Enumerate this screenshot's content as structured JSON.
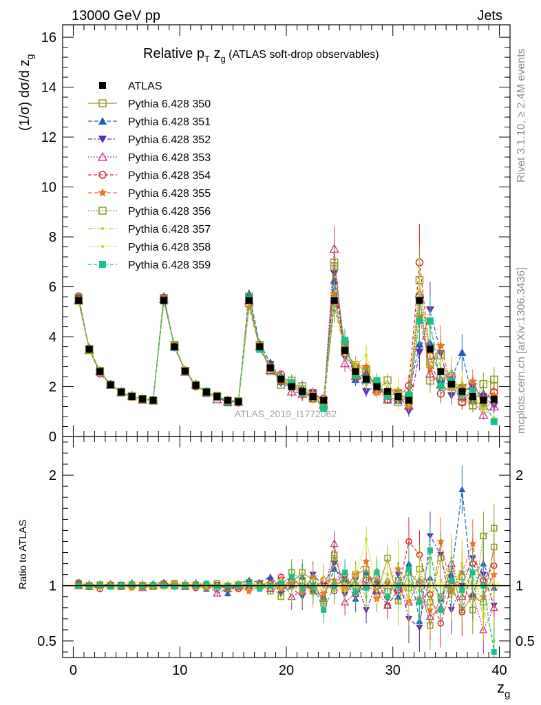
{
  "header": {
    "left": "13000 GeV pp",
    "right": "Jets"
  },
  "side": {
    "rivet": "Rivet 3.1.10, ≥ 2.4M events",
    "mcplots": "mcplots.cern.ch [arXiv:1306.3436]"
  },
  "main": {
    "title_prefix": "Relative p",
    "title_sub_t": "T",
    "title_mid": " z",
    "title_sub_g": "g",
    "title_suffix": " (ATLAS soft-drop observables)",
    "ylabel_prefix": "(1/σ) dσ/d z",
    "ylabel_sub": "g",
    "watermark": "ATLAS_2019_I1772062"
  },
  "ratio": {
    "ylabel": "Ratio to ATLAS"
  },
  "xaxis": {
    "label": "z",
    "label_sub": "g"
  },
  "chart_data": [
    {
      "type": "line",
      "panel": "main",
      "title": "Relative pT zg (ATLAS soft-drop observables)",
      "xlabel": "zg",
      "ylabel": "(1/σ) dσ/d zg",
      "xlim": [
        -1,
        41
      ],
      "ylim": [
        0,
        16.5
      ],
      "xticks": [
        0,
        10,
        20,
        30,
        40
      ],
      "yticks": [
        0,
        2,
        4,
        6,
        8,
        10,
        12,
        14,
        16
      ],
      "legend_position": "top-left",
      "x": [
        0.5,
        1.5,
        2.5,
        3.5,
        4.5,
        5.5,
        6.5,
        7.5,
        8.5,
        9.5,
        10.5,
        11.5,
        12.5,
        13.5,
        14.5,
        15.5,
        16.5,
        17.5,
        18.5,
        19.5,
        20.5,
        21.5,
        22.5,
        23.5,
        24.5,
        25.5,
        26.5,
        27.5,
        28.5,
        29.5,
        30.5,
        31.5,
        32.5,
        33.5,
        34.5,
        35.5,
        36.5,
        37.5,
        38.5,
        39.5
      ],
      "reference": {
        "name": "ATLAS",
        "color": "#000000",
        "values": [
          5.45,
          3.5,
          2.6,
          2.07,
          1.78,
          1.6,
          1.5,
          1.45,
          5.45,
          3.6,
          2.62,
          2.05,
          1.78,
          1.6,
          1.45,
          1.4,
          5.45,
          3.6,
          2.75,
          2.3,
          2.0,
          1.8,
          1.6,
          1.45,
          5.45,
          3.45,
          2.6,
          2.3,
          2.0,
          1.8,
          1.6,
          1.45,
          5.45,
          3.5,
          2.6,
          2.1,
          1.8,
          1.6,
          1.45,
          1.5
        ]
      },
      "series": [
        {
          "name": "Pythia 6.428 350",
          "color": "#9a9a2e",
          "marker": "square-open",
          "dash": ""
        },
        {
          "name": "Pythia 6.428 351",
          "color": "#1f5fbf",
          "marker": "triangle-up",
          "dash": "6,3"
        },
        {
          "name": "Pythia 6.428 352",
          "color": "#5a2fb0",
          "marker": "triangle-down",
          "dash": "6,3,2,3"
        },
        {
          "name": "Pythia 6.428 353",
          "color": "#c0308a",
          "marker": "triangle-open",
          "dash": "2,2"
        },
        {
          "name": "Pythia 6.428 354",
          "color": "#e0202a",
          "marker": "circle-open",
          "dash": "5,3"
        },
        {
          "name": "Pythia 6.428 355",
          "color": "#f07020",
          "marker": "star",
          "dash": "6,3"
        },
        {
          "name": "Pythia 6.428 356",
          "color": "#8a9a18",
          "marker": "square-open",
          "dash": "2,2"
        },
        {
          "name": "Pythia 6.428 357",
          "color": "#d8c218",
          "marker": "dot",
          "dash": "7,3,2,3"
        },
        {
          "name": "Pythia 6.428 358",
          "color": "#c8d818",
          "marker": "dot",
          "dash": "2,2"
        },
        {
          "name": "Pythia 6.428 359",
          "color": "#18c08a",
          "marker": "square",
          "dash": "5,3"
        }
      ],
      "ratios": [
        [
          1.0,
          1.0,
          1.01,
          1.0,
          1.0,
          1.0,
          1.0,
          0.99,
          1.0,
          1.01,
          1.0,
          1.0,
          1.0,
          0.98,
          0.99,
          1.01,
          0.98,
          1.02,
          0.95,
          1.0,
          1.03,
          1.12,
          1.05,
          0.84,
          1.28,
          0.98,
          1.1,
          1.15,
          0.92,
          1.25,
          0.86,
          1.12,
          1.02,
          0.64,
          0.9,
          1.15,
          0.78,
          0.9,
          0.85,
          1.35
        ],
        [
          1.01,
          1.01,
          1.0,
          1.02,
          0.99,
          1.01,
          1.0,
          1.02,
          1.03,
          1.0,
          1.0,
          1.01,
          0.97,
          1.0,
          0.93,
          1.02,
          1.05,
          1.03,
          1.08,
          0.96,
          1.0,
          1.08,
          0.95,
          0.9,
          1.15,
          1.06,
          0.88,
          1.12,
          0.95,
          1.05,
          0.9,
          1.2,
          0.68,
          1.07,
          0.88,
          1.1,
          1.87,
          0.92,
          1.2,
          0.98
        ],
        [
          1.02,
          1.0,
          0.99,
          1.01,
          1.01,
          1.0,
          1.01,
          1.0,
          1.02,
          0.99,
          1.01,
          0.99,
          1.0,
          1.01,
          0.97,
          1.0,
          1.0,
          0.98,
          1.05,
          0.93,
          0.98,
          0.9,
          1.1,
          1.0,
          1.2,
          0.92,
          1.05,
          0.78,
          1.02,
          0.88,
          1.1,
          0.7,
          0.62,
          1.45,
          1.28,
          0.78,
          1.0,
          1.25,
          1.1,
          0.82
        ],
        [
          1.0,
          0.99,
          1.01,
          1.0,
          1.0,
          1.02,
          0.98,
          1.0,
          1.01,
          1.0,
          0.99,
          1.02,
          1.01,
          0.93,
          0.97,
          0.99,
          1.0,
          1.0,
          0.97,
          1.05,
          0.9,
          0.95,
          1.0,
          0.88,
          1.38,
          0.85,
          0.93,
          1.0,
          0.95,
          0.82,
          0.98,
          0.85,
          1.05,
          0.72,
          0.8,
          1.2,
          0.9,
          0.92,
          0.6,
          0.8
        ],
        [
          1.03,
          1.0,
          0.97,
          1.01,
          0.99,
          1.0,
          1.0,
          1.01,
          1.02,
          1.0,
          1.0,
          0.98,
          1.0,
          1.0,
          0.99,
          0.97,
          1.0,
          1.01,
          1.02,
          1.08,
          1.05,
          1.0,
          0.97,
          1.05,
          0.95,
          1.1,
          0.92,
          1.05,
          1.08,
          0.82,
          0.96,
          1.4,
          1.28,
          0.92,
          0.66,
          1.0,
          0.76,
          1.2,
          1.05,
          1.18
        ],
        [
          1.01,
          1.02,
          1.0,
          0.99,
          1.01,
          0.98,
          1.02,
          1.0,
          1.0,
          1.01,
          1.02,
          1.0,
          0.98,
          1.0,
          1.01,
          0.99,
          0.95,
          0.99,
          1.0,
          0.97,
          1.02,
          0.94,
          1.08,
          0.93,
          1.05,
          0.97,
          1.1,
          1.22,
          0.88,
          1.02,
          1.15,
          0.86,
          0.88,
          0.78,
          1.4,
          0.95,
          1.12,
          1.38,
          0.9,
          1.1
        ],
        [
          1.02,
          0.99,
          1.0,
          1.0,
          0.99,
          1.01,
          0.99,
          1.0,
          1.01,
          1.02,
          1.0,
          1.01,
          1.0,
          1.02,
          0.98,
          1.0,
          1.03,
          1.0,
          1.0,
          0.9,
          1.12,
          1.05,
          0.95,
          0.86,
          1.25,
          1.03,
          1.0,
          1.1,
          1.02,
          0.95,
          1.05,
          0.98,
          1.15,
          0.85,
          1.25,
          0.95,
          1.08,
          0.78,
          1.45,
          1.52
        ],
        [
          1.0,
          1.01,
          1.0,
          1.01,
          1.0,
          1.0,
          1.0,
          1.0,
          0.99,
          1.0,
          1.01,
          1.0,
          0.99,
          1.0,
          1.0,
          1.02,
          1.0,
          1.01,
          1.03,
          0.98,
          1.05,
          1.0,
          0.92,
          1.08,
          0.95,
          1.0,
          1.05,
          0.9,
          1.15,
          1.1,
          0.85,
          1.05,
          0.95,
          1.25,
          1.05,
          0.9,
          1.2,
          1.05,
          0.72,
          1.0
        ],
        [
          0.99,
          1.0,
          1.01,
          1.0,
          1.01,
          1.0,
          1.01,
          0.99,
          1.0,
          1.0,
          0.99,
          1.01,
          1.0,
          1.01,
          1.01,
          1.0,
          0.99,
          1.0,
          0.98,
          1.06,
          0.97,
          1.02,
          1.06,
          1.0,
          1.02,
          0.95,
          1.08,
          1.42,
          0.95,
          1.05,
          1.2,
          0.9,
          1.08,
          1.0,
          0.88,
          1.25,
          0.9,
          1.1,
          0.8,
          0.5
        ],
        [
          1.0,
          1.0,
          1.0,
          0.99,
          1.0,
          1.01,
          1.0,
          1.01,
          1.0,
          0.99,
          1.0,
          1.0,
          1.02,
          0.99,
          1.0,
          1.0,
          1.01,
          0.97,
          1.0,
          1.02,
          1.08,
          0.98,
          1.0,
          0.78,
          1.0,
          1.12,
          0.94,
          0.98,
          1.12,
          0.9,
          1.0,
          1.15,
          0.85,
          1.32,
          0.78,
          1.05,
          0.96,
          1.12,
          1.0,
          0.4
        ]
      ]
    },
    {
      "type": "line",
      "panel": "ratio",
      "ylabel": "Ratio to ATLAS",
      "ylim": [
        0.35,
        2.35
      ],
      "yticks": [
        0.5,
        1,
        2
      ],
      "ytick_labels": [
        "0.5",
        "1",
        "2"
      ],
      "reference_line": 1
    }
  ]
}
